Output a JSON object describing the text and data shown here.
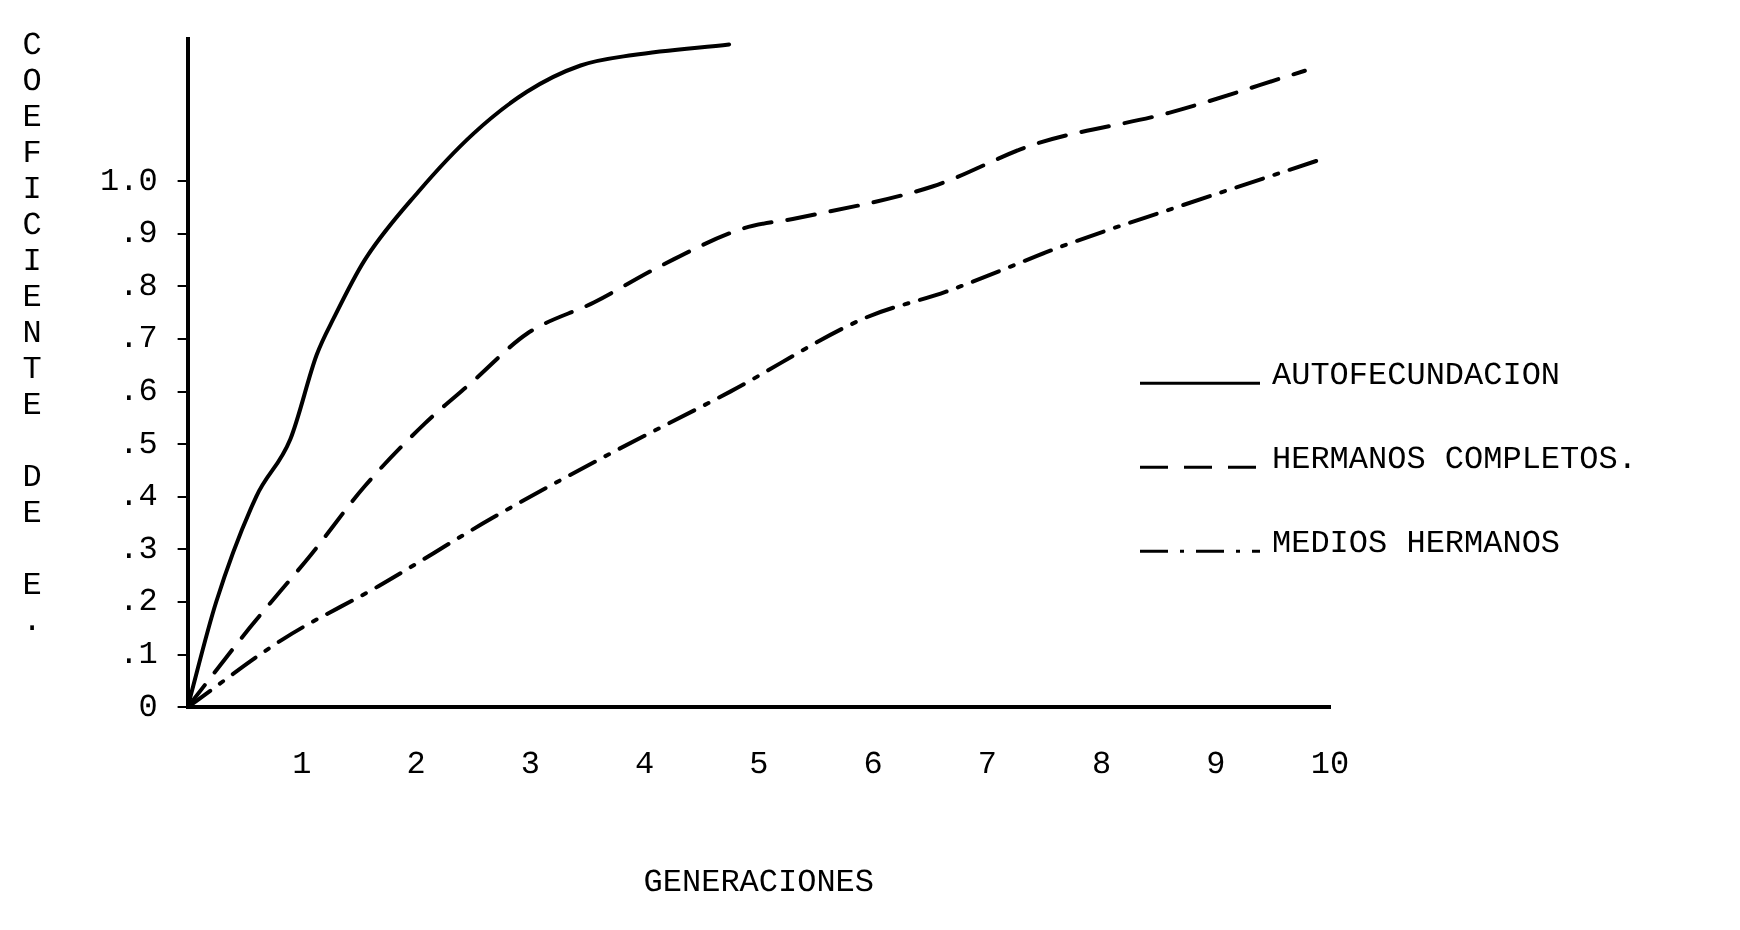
{
  "chart_data": {
    "type": "line",
    "xlabel": "GENERACIONES",
    "ylabel": "COEFICIENTE DE E.",
    "xlim": [
      0,
      10
    ],
    "xticks": [
      1,
      2,
      3,
      4,
      5,
      6,
      7,
      8,
      9,
      10
    ],
    "ylim": [
      0,
      1.27
    ],
    "yticks": [
      0,
      {
        "value": 0.1,
        "label": ".1"
      },
      {
        "value": 0.2,
        "label": ".2"
      },
      {
        "value": 0.3,
        "label": ".3"
      },
      {
        "value": 0.4,
        "label": ".4"
      },
      {
        "value": 0.5,
        "label": ".5"
      },
      {
        "value": 0.6,
        "label": ".6"
      },
      {
        "value": 0.7,
        "label": ".7"
      },
      {
        "value": 0.8,
        "label": ".8"
      },
      {
        "value": 0.9,
        "label": ".9"
      },
      {
        "value": 1,
        "label": "1.0"
      }
    ],
    "grid": false,
    "legend": "right",
    "marker": "none",
    "series": [
      {
        "name": "AUTOFECUNDACION",
        "color": "#000000",
        "line_style": "solid",
        "x": [
          0,
          0.25,
          0.6,
          0.9,
          1.13,
          1.28,
          1.55,
          2.02,
          2.5,
          2.97,
          3.44,
          3.9,
          4.74
        ],
        "values": [
          0,
          0.2,
          0.4,
          0.51,
          0.67,
          0.74,
          0.85,
          0.98,
          1.09,
          1.17,
          1.22,
          1.24,
          1.26
        ]
      },
      {
        "name": "HERMANOS COMPLETOS.",
        "color": "#000000",
        "line_style": "dashed",
        "x": [
          0,
          0.54,
          1.08,
          1.55,
          2.08,
          2.5,
          2.97,
          3.56,
          4.15,
          4.86,
          5.34,
          6.52,
          7.41,
          8.59,
          9.78
        ],
        "values": [
          0,
          0.15,
          0.29,
          0.42,
          0.54,
          0.62,
          0.71,
          0.77,
          0.84,
          0.91,
          0.93,
          0.99,
          1.07,
          1.13,
          1.21
        ]
      },
      {
        "name": "MEDIOS HERMANOS",
        "color": "#000000",
        "line_style": "dashdot",
        "x": [
          0,
          0.84,
          1.67,
          2.67,
          3.68,
          4.75,
          5.93,
          6.64,
          7.7,
          8.65,
          9.9
        ],
        "values": [
          0,
          0.13,
          0.23,
          0.36,
          0.48,
          0.6,
          0.74,
          0.79,
          0.88,
          0.95,
          1.04
        ]
      }
    ]
  }
}
